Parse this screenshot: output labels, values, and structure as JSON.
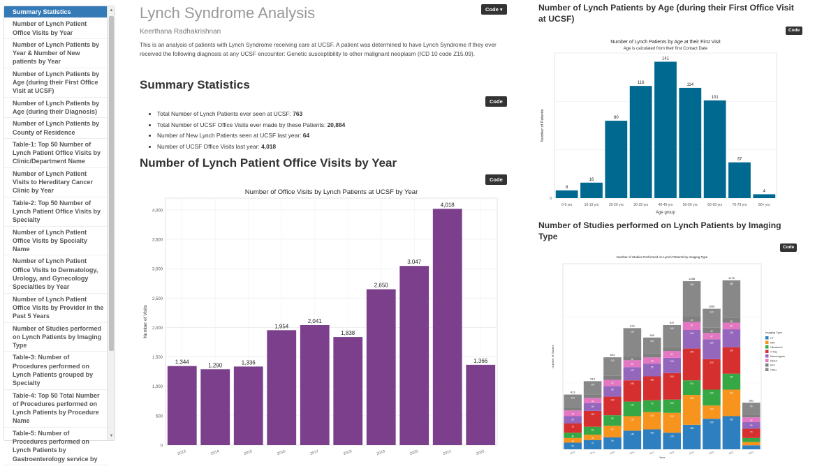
{
  "toc": {
    "items": [
      "Summary Statistics",
      "Number of Lynch Patient Office Visits by Year",
      "Number of Lynch Patients by Year & Number of New patients by Year",
      "Number of Lynch Patients by Age (during their First Office Visit at UCSF)",
      "Number of Lynch Patients by Age (during their Diagnosis)",
      "Number of Lynch Patients by County of Residence",
      "Table-1: Top 50 Number of Lynch Patient Office Visits by Clinic/Department Name",
      "Number of Lynch Patient Visits to Hereditary Cancer Clinic by Year",
      "Table-2: Top 50 Number of Lynch Patient Office Visits by Specialty",
      "Number of Lynch Patient Office Visits by Specialty Name",
      "Number of Lynch Patient Office Visits to Dermatology, Urology, and Gynecology Specialties by Year",
      "Number of Lynch Patient Office Visits by Provider in the Past 5 Years",
      "Number of Studies performed on Lynch Patients by Imaging Type",
      "Table-3: Number of Procedures performed on Lynch Patients grouped by Specialty",
      "Table-4: Top 50 Total Number of Procedures performed on Lynch Patients by Procedure Name",
      "Table-5: Number of Procedures performed on Lynch Patients by Gastroenterology service by"
    ]
  },
  "header": {
    "title": "Lynch Syndrome Analysis",
    "author": "Keerthana Radhakrishnan",
    "code_label": "Code ▾",
    "intro": "This is an analysis of patients with Lynch Syndrome receiving care at UCSF. A patient was determined to have Lynch Syndrome if they ever received the following diagnosis at any UCSF encounter: Genetic susceptibility to other malignant neoplasm (ICD 10 code Z15.09)."
  },
  "code_label": "Code",
  "summary": {
    "heading": "Summary Statistics",
    "items": [
      {
        "label": "Total Number of Lynch Patients ever seen at UCSF: ",
        "value": "763"
      },
      {
        "label": "Total Number of UCSF Office Visits ever made by these Patients: ",
        "value": "20,884"
      },
      {
        "label": "Number of New Lynch Patients seen at UCSF last year: ",
        "value": "64"
      },
      {
        "label": "Number of UCSF Office Visits last year: ",
        "value": "4,018"
      }
    ]
  },
  "visits_section": {
    "heading": "Number of Lynch Patient Office Visits by Year"
  },
  "age_section": {
    "heading": "Number of Lynch Patients by Age (during their First Office Visit at UCSF)"
  },
  "imaging_section": {
    "heading": "Number of Studies performed on Lynch Patients by Imaging Type"
  },
  "colors": {
    "accent": "#337ab7",
    "visits_bar": "#7b3f8c",
    "age_bar": "#00698f",
    "imaging": [
      "#2e7fbf",
      "#f7941d",
      "#35a845",
      "#d62f2f",
      "#9467bd",
      "#e377c2",
      "#7f7f7f"
    ]
  },
  "chart_data": [
    {
      "type": "bar",
      "title": "Number of Office Visits by Lynch Patients at UCSF by Year",
      "xlabel": "",
      "ylabel": "Number of Visits",
      "categories": [
        "2013",
        "2014",
        "2015",
        "2016",
        "2017",
        "2018",
        "2019",
        "2020",
        "2021",
        "2022"
      ],
      "values": [
        1344,
        1290,
        1336,
        1954,
        2041,
        1838,
        2650,
        3047,
        4018,
        1366
      ],
      "value_labels": [
        "1,344",
        "1,290",
        "1,336",
        "1,954",
        "2,041",
        "1,838",
        "2,650",
        "3,047",
        "4,018",
        "1,366"
      ],
      "yticks": [
        0,
        500,
        1000,
        1500,
        2000,
        2500,
        3000,
        3500,
        4000
      ],
      "ytick_labels": [
        "0",
        "500",
        "1,000",
        "1,500",
        "2,000",
        "2,500",
        "3,000",
        "3,500",
        "4,000"
      ],
      "ylim": [
        0,
        4200
      ],
      "grid": true
    },
    {
      "type": "bar",
      "title": "Number of Lynch Patients by Age at their First Visit",
      "subtitle": "Age is calculated from their first Contact Date",
      "xlabel": "Age group",
      "ylabel": "Number of Patients",
      "categories": [
        "0-9 yrs",
        "10-19 yrs",
        "20-29 yrs",
        "30-39 yrs",
        "40-49 yrs",
        "50-59 yrs",
        "60-69 yrs",
        "70-79 yrs",
        "80+ yrs"
      ],
      "values": [
        8,
        16,
        80,
        116,
        141,
        114,
        101,
        37,
        4
      ],
      "yticks": [
        0
      ],
      "ytick_labels": [
        "0"
      ],
      "ylim": [
        0,
        150
      ],
      "grid": true
    },
    {
      "type": "bar",
      "stacked": true,
      "title": "Number of Studies Performed on Lynch Patients by Imaging Type",
      "xlabel": "Year",
      "ylabel": "Number of Studies",
      "legend_title": "Imaging Type",
      "legend_position": "right",
      "categories": [
        "2013",
        "2014",
        "2015",
        "2016",
        "2017",
        "2018",
        "2019",
        "2020",
        "2021",
        "2022"
      ],
      "totals": [
        413,
        514,
        694,
        914,
        843,
        937,
        1268,
        1060,
        1275,
        351
      ],
      "total_labels": [
        "413",
        "514",
        "694",
        "914",
        "843",
        "937",
        "1268",
        "1060",
        "1275",
        "351"
      ],
      "series": [
        {
          "name": "CT",
          "values": [
            50,
            70,
            90,
            140,
            150,
            125,
            185,
            230,
            250,
            30
          ]
        },
        {
          "name": "MRI",
          "values": [
            35,
            40,
            87,
            110,
            130,
            150,
            225,
            100,
            200,
            25
          ]
        },
        {
          "name": "Ultrasound",
          "values": [
            40,
            60,
            80,
            110,
            90,
            100,
            110,
            120,
            120,
            30
          ]
        },
        {
          "name": "X-Ray",
          "values": [
            70,
            120,
            140,
            160,
            180,
            200,
            240,
            230,
            200,
            70
          ]
        },
        {
          "name": "Mammogram",
          "values": [
            55,
            58,
            80,
            100,
            95,
            115,
            140,
            150,
            135,
            50
          ]
        },
        {
          "name": "DEXA",
          "values": [
            43,
            40,
            47,
            52,
            48,
            52,
            60,
            47,
            50,
            36
          ]
        },
        {
          "name": "PET",
          "values": [
            20,
            26,
            30,
            32,
            30,
            30,
            40,
            40,
            35,
            20
          ]
        },
        {
          "name": "Other",
          "values": [
            100,
            100,
            140,
            210,
            120,
            165,
            268,
            143,
            285,
            90
          ]
        }
      ],
      "segment_labels": [
        [
          "50",
          "35",
          "40",
          "70",
          "55",
          "43",
          "20",
          "100"
        ],
        [
          "70",
          "40",
          "60",
          "120",
          "58",
          "40",
          "26",
          "100"
        ],
        [
          "90",
          "87",
          "80",
          "140",
          "80",
          "47",
          "30",
          "140"
        ],
        [
          "140",
          "110",
          "110",
          "160",
          "100",
          "52",
          "32",
          "210"
        ],
        [
          "150",
          "130",
          "90",
          "180",
          "95",
          "48",
          "30",
          "120"
        ],
        [
          "125",
          "150",
          "100",
          "200",
          "115",
          "52",
          "30",
          "165"
        ],
        [
          "185",
          "225",
          "110",
          "240",
          "140",
          "60",
          "40",
          "268"
        ],
        [
          "230",
          "100",
          "120",
          "230",
          "150",
          "47",
          "40",
          "143"
        ],
        [
          "250",
          "200",
          "120",
          "200",
          "135",
          "50",
          "35",
          "285"
        ],
        [
          "30",
          "25",
          "30",
          "70",
          "50",
          "36",
          "20",
          "90"
        ]
      ],
      "ylim": [
        0,
        1400
      ],
      "grid": true
    }
  ]
}
